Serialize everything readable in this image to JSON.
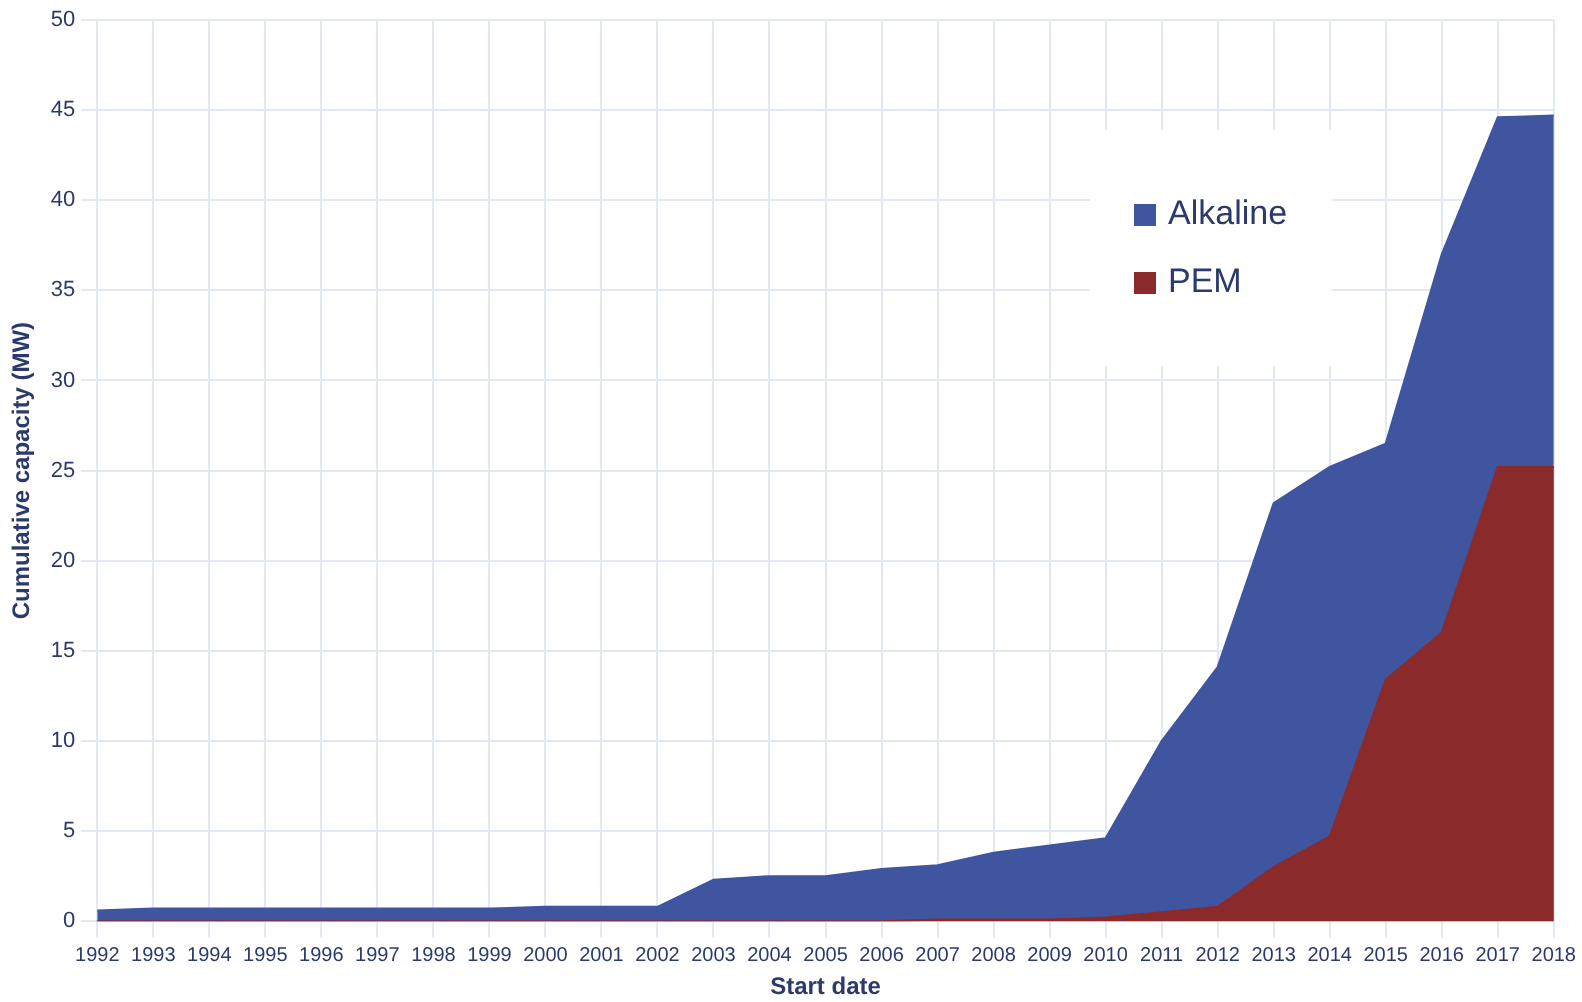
{
  "chart_data": {
    "type": "area",
    "xlabel": "Start date",
    "ylabel": "Cumulative capacity (MW)",
    "categories": [
      "1992",
      "1993",
      "1994",
      "1995",
      "1996",
      "1997",
      "1998",
      "1999",
      "2000",
      "2001",
      "2002",
      "2003",
      "2004",
      "2005",
      "2006",
      "2007",
      "2008",
      "2009",
      "2010",
      "2011",
      "2012",
      "2013",
      "2014",
      "2015",
      "2016",
      "2017",
      "2018"
    ],
    "series": [
      {
        "name": "Alkaline",
        "color": "#3f55a0",
        "values": [
          0.6,
          0.7,
          0.7,
          0.7,
          0.7,
          0.7,
          0.7,
          0.7,
          0.8,
          0.8,
          0.8,
          2.3,
          2.5,
          2.5,
          2.9,
          3.1,
          3.8,
          4.2,
          4.6,
          10,
          14.1,
          23.2,
          25.2,
          26.5,
          37,
          44.6,
          44.7
        ]
      },
      {
        "name": "PEM",
        "color": "#8b2a2b",
        "values": [
          0,
          0,
          0,
          0,
          0,
          0,
          0,
          0,
          0,
          0,
          0,
          0,
          0,
          0,
          0,
          0.1,
          0.1,
          0.1,
          0.2,
          0.5,
          0.8,
          3,
          4.7,
          13.4,
          16,
          25.2,
          25.2
        ]
      }
    ],
    "ylim": [
      0,
      50
    ],
    "yticks": [
      0,
      5,
      10,
      15,
      20,
      25,
      30,
      35,
      40,
      45,
      50
    ],
    "grid": true,
    "legend": "top right"
  }
}
